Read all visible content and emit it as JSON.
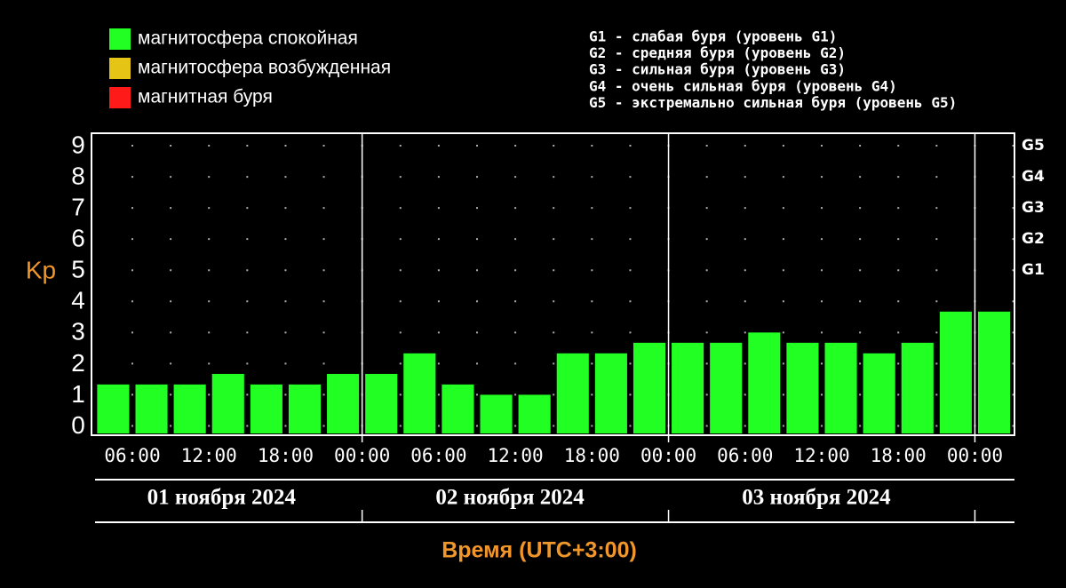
{
  "chart_data": {
    "type": "bar",
    "y_label": "Kp",
    "x_label": "Время (UTC+3:00)",
    "legend": [
      {
        "name": "магнитосфера спокойная",
        "color": "#22ff22"
      },
      {
        "name": "магнитосфера возбужденная",
        "color": "#e6c416"
      },
      {
        "name": "магнитная буря",
        "color": "#ff1a1a"
      }
    ],
    "notes": [
      "G1 - слабая буря (уровень G1)",
      "G2 - средняя буря (уровень G2)",
      "G3 - сильная буря (уровень G3)",
      "G4 - очень сильная буря (уровень G4)",
      "G5 - экстремально сильная буря (уровень G5)"
    ],
    "days": [
      "01 ноября 2024",
      "02 ноября 2024",
      "03 ноября 2024"
    ],
    "x": [
      4.5,
      7.5,
      10.5,
      13.5,
      16.5,
      19.5,
      22.5,
      25.5,
      28.5,
      31.5,
      34.5,
      37.5,
      40.5,
      43.5,
      46.5,
      49.5,
      52.5,
      55.5,
      58.5,
      61.5,
      64.5,
      67.5,
      70.5,
      73.5
    ],
    "values": [
      1.33,
      1.33,
      1.33,
      1.67,
      1.33,
      1.33,
      1.67,
      1.67,
      2.33,
      1.33,
      1.0,
      1.0,
      2.33,
      2.33,
      2.67,
      2.67,
      2.67,
      3.0,
      2.67,
      2.67,
      2.33,
      2.67,
      3.67,
      3.67
    ],
    "color": "#22ff22",
    "xlim": [
      2.8,
      75.1
    ],
    "xticks": [
      {
        "value": 6,
        "label": "06:00"
      },
      {
        "value": 12,
        "label": "12:00"
      },
      {
        "value": 18,
        "label": "18:00"
      },
      {
        "value": 24,
        "label": "00:00"
      },
      {
        "value": 30,
        "label": "06:00"
      },
      {
        "value": 36,
        "label": "12:00"
      },
      {
        "value": 42,
        "label": "18:00"
      },
      {
        "value": 48,
        "label": "00:00"
      },
      {
        "value": 54,
        "label": "06:00"
      },
      {
        "value": 60,
        "label": "12:00"
      },
      {
        "value": 66,
        "label": "18:00"
      },
      {
        "value": 72,
        "label": "00:00"
      }
    ],
    "ylim": [
      -0.3,
      9.4
    ],
    "yticks": [
      0,
      1,
      2,
      3,
      4,
      5,
      6,
      7,
      8,
      9
    ],
    "y2lim": [
      -0.3,
      9.4
    ],
    "y2ticks": [
      {
        "value": 5,
        "label": "G1"
      },
      {
        "value": 6,
        "label": "G2"
      },
      {
        "value": 7,
        "label": "G3"
      },
      {
        "value": 8,
        "label": "G4"
      },
      {
        "value": 9,
        "label": "G5"
      }
    ],
    "grid": true
  }
}
